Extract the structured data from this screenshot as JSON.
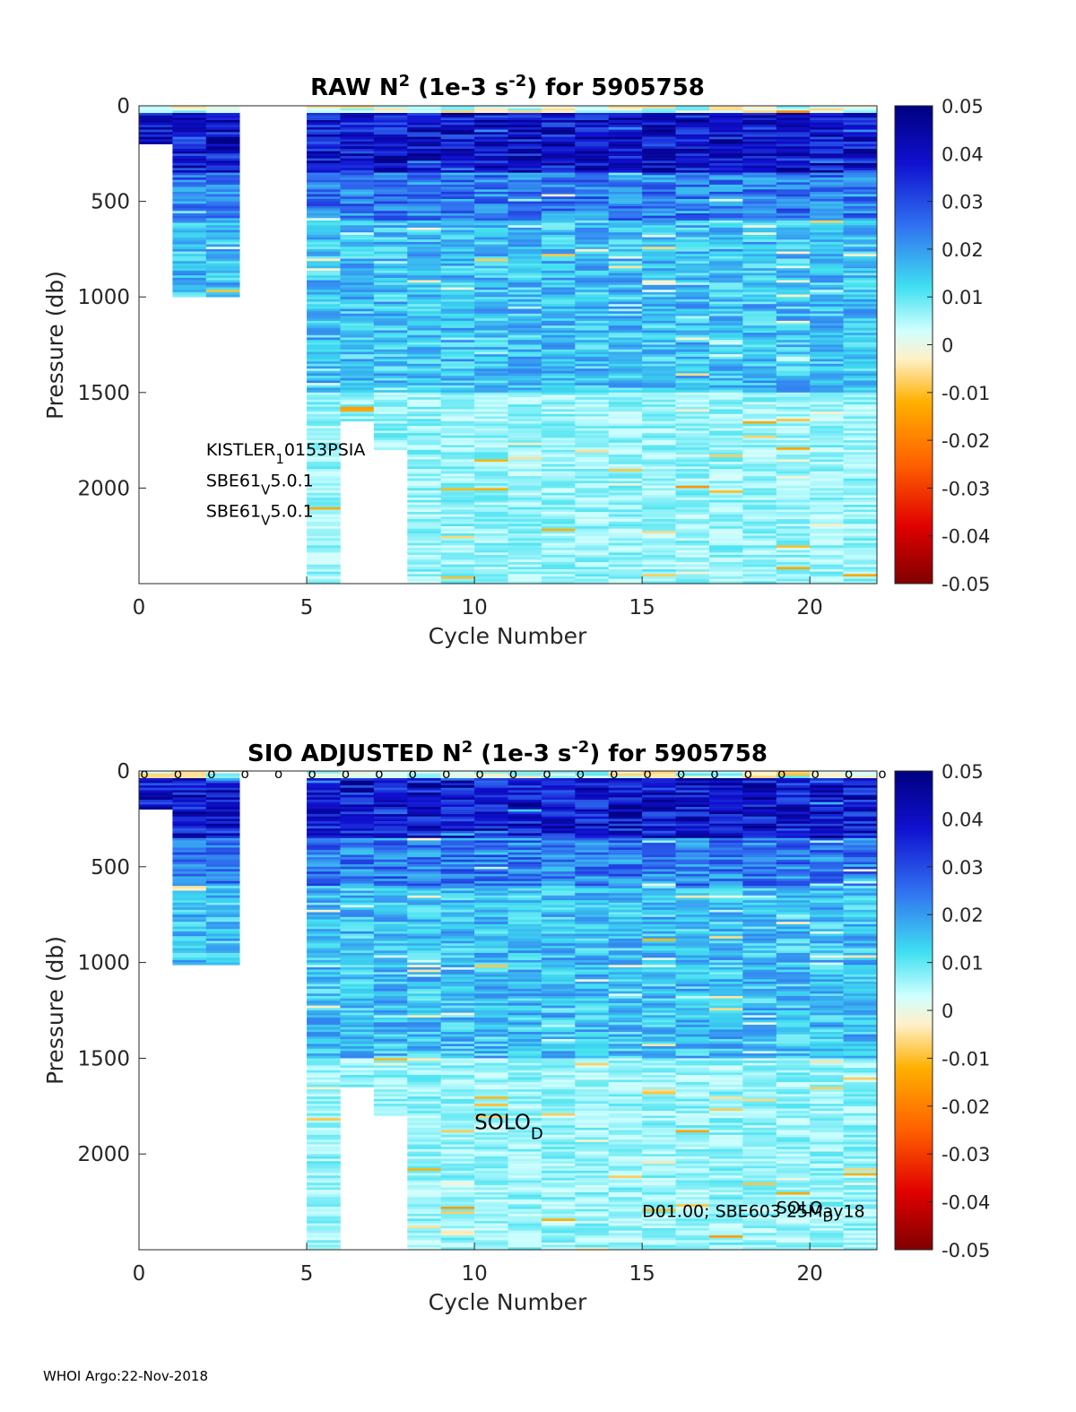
{
  "footer": "WHOI Argo:22-Nov-2018",
  "chart_data": [
    {
      "type": "heatmap",
      "title": {
        "main": "RAW N",
        "sup1": "2",
        "mid": " (1e-3 s",
        "sup2": "-2",
        "end": ") for 5905758"
      },
      "xlabel": "Cycle Number",
      "ylabel": "Pressure (db)",
      "xlim": [
        0,
        22
      ],
      "ylim": [
        0,
        2500
      ],
      "y_reversed": true,
      "xticks": [
        "0",
        "5",
        "10",
        "15",
        "20"
      ],
      "yticks": [
        "0",
        "500",
        "1000",
        "1500",
        "2000"
      ],
      "colorbar": {
        "range": [
          -0.05,
          0.05
        ],
        "ticks": [
          "0.05",
          "0.04",
          "0.03",
          "0.02",
          "0.01",
          "0",
          "-0.01",
          "-0.02",
          "-0.03",
          "-0.04",
          "-0.05"
        ]
      },
      "profiles": [
        {
          "cycle": 0,
          "max_pressure": 200
        },
        {
          "cycle": 1,
          "max_pressure": 1000
        },
        {
          "cycle": 2,
          "max_pressure": 1000
        },
        {
          "cycle": 5,
          "max_pressure": 2500
        },
        {
          "cycle": 6,
          "max_pressure": 1650
        },
        {
          "cycle": 7,
          "max_pressure": 1800
        },
        {
          "cycle": 8,
          "max_pressure": 2500
        },
        {
          "cycle": 9,
          "max_pressure": 2500
        },
        {
          "cycle": 10,
          "max_pressure": 2500
        },
        {
          "cycle": 11,
          "max_pressure": 2500
        },
        {
          "cycle": 12,
          "max_pressure": 2500
        },
        {
          "cycle": 13,
          "max_pressure": 2500
        },
        {
          "cycle": 14,
          "max_pressure": 2500
        },
        {
          "cycle": 15,
          "max_pressure": 2500
        },
        {
          "cycle": 16,
          "max_pressure": 2500
        },
        {
          "cycle": 17,
          "max_pressure": 2500
        },
        {
          "cycle": 18,
          "max_pressure": 2500
        },
        {
          "cycle": 19,
          "max_pressure": 2500
        },
        {
          "cycle": 20,
          "max_pressure": 2500
        },
        {
          "cycle": 21,
          "max_pressure": 2500
        }
      ],
      "annotations": [
        {
          "x": 2,
          "y": 1830,
          "parts": [
            "KISTLER",
            "1",
            "0153PSIA"
          ]
        },
        {
          "x": 2,
          "y": 1990,
          "parts": [
            "SBE61",
            "V",
            "5.0.1"
          ]
        },
        {
          "x": 2,
          "y": 2150,
          "parts": [
            "SBE61",
            "V",
            "5.0.1"
          ]
        }
      ],
      "markers": []
    },
    {
      "type": "heatmap",
      "title": {
        "main": "SIO  ADJUSTED N",
        "sup1": "2",
        "mid": " (1e-3 s",
        "sup2": "-2",
        "end": ") for 5905758"
      },
      "xlabel": "Cycle Number",
      "ylabel": "Pressure (db)",
      "xlim": [
        0,
        22
      ],
      "ylim": [
        0,
        2500
      ],
      "y_reversed": true,
      "xticks": [
        "0",
        "5",
        "10",
        "15",
        "20"
      ],
      "yticks": [
        "0",
        "500",
        "1000",
        "1500",
        "2000"
      ],
      "colorbar": {
        "range": [
          -0.05,
          0.05
        ],
        "ticks": [
          "0.05",
          "0.04",
          "0.03",
          "0.02",
          "0.01",
          "0",
          "-0.01",
          "-0.02",
          "-0.03",
          "-0.04",
          "-0.05"
        ]
      },
      "profiles": [
        {
          "cycle": 0,
          "max_pressure": 200
        },
        {
          "cycle": 1,
          "max_pressure": 1010
        },
        {
          "cycle": 2,
          "max_pressure": 1010
        },
        {
          "cycle": 5,
          "max_pressure": 2500
        },
        {
          "cycle": 6,
          "max_pressure": 1650
        },
        {
          "cycle": 7,
          "max_pressure": 1800
        },
        {
          "cycle": 8,
          "max_pressure": 2500
        },
        {
          "cycle": 9,
          "max_pressure": 2500
        },
        {
          "cycle": 10,
          "max_pressure": 2500
        },
        {
          "cycle": 11,
          "max_pressure": 2500
        },
        {
          "cycle": 12,
          "max_pressure": 2500
        },
        {
          "cycle": 13,
          "max_pressure": 2500
        },
        {
          "cycle": 14,
          "max_pressure": 2500
        },
        {
          "cycle": 15,
          "max_pressure": 2500
        },
        {
          "cycle": 16,
          "max_pressure": 2500
        },
        {
          "cycle": 17,
          "max_pressure": 2500
        },
        {
          "cycle": 18,
          "max_pressure": 2500
        },
        {
          "cycle": 19,
          "max_pressure": 2500
        },
        {
          "cycle": 20,
          "max_pressure": 2500
        },
        {
          "cycle": 21,
          "max_pressure": 2500
        }
      ],
      "annotations": [
        {
          "x": 10,
          "y": 1870,
          "parts": [
            "SOLO",
            "D",
            ""
          ],
          "big": true
        },
        {
          "x": 15,
          "y": 2330,
          "parts": [
            "D01.00; SBE603 25May18",
            "",
            ""
          ]
        },
        {
          "x": 19,
          "y": 2310,
          "parts": [
            "SOLO",
            "D",
            ""
          ]
        }
      ],
      "markers": {
        "symbol": "o",
        "y": 0,
        "cycles": [
          0,
          1,
          2,
          3,
          4,
          5,
          6,
          7,
          8,
          9,
          10,
          11,
          12,
          13,
          14,
          15,
          16,
          17,
          18,
          19,
          20,
          21,
          22
        ]
      }
    }
  ]
}
